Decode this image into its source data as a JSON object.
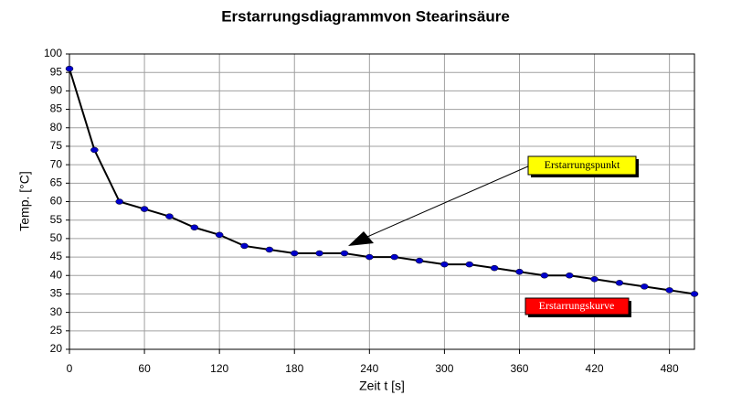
{
  "chart_data": {
    "type": "line",
    "title": "Erstarrungsdiagrammvon Stearinsäure",
    "x_label": "Zeit t [s]",
    "y_label": "Temp. [°C]",
    "x": [
      0,
      20,
      40,
      60,
      80,
      100,
      120,
      140,
      160,
      180,
      200,
      220,
      240,
      260,
      280,
      300,
      320,
      340,
      360,
      380,
      400,
      420,
      440,
      460,
      480,
      500
    ],
    "series": [
      {
        "name": "Erstarrungskurve",
        "color": "#000000",
        "values": [
          96,
          74,
          60,
          58,
          56,
          53,
          51,
          48,
          47,
          46,
          46,
          46,
          45,
          45,
          44,
          43,
          43,
          42,
          41,
          40,
          40,
          39,
          38,
          37,
          36,
          35
        ]
      }
    ],
    "marker_color": "#0000cc",
    "xlim": [
      0,
      500
    ],
    "xticks": [
      0,
      60,
      120,
      180,
      240,
      300,
      360,
      420,
      480
    ],
    "ylim": [
      20,
      100
    ],
    "yticks": [
      20,
      25,
      30,
      35,
      40,
      45,
      50,
      55,
      60,
      65,
      70,
      75,
      80,
      85,
      90,
      95,
      100
    ],
    "grid": true,
    "annotations": [
      {
        "text": "Erstarrungspunkt"
      }
    ]
  }
}
